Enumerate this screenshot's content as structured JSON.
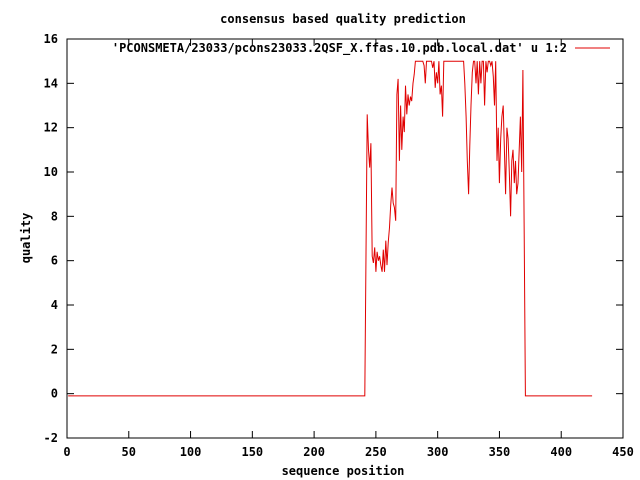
{
  "chart_data": {
    "type": "line",
    "title": "consensus based quality prediction",
    "xlabel": "sequence position",
    "ylabel": "quality",
    "xlim": [
      0,
      450
    ],
    "ylim": [
      -2,
      16
    ],
    "xticks": [
      "0",
      "50",
      "100",
      "150",
      "200",
      "250",
      "300",
      "350",
      "400",
      "450"
    ],
    "yticks": [
      "-2",
      "0",
      "2",
      "4",
      "6",
      "8",
      "10",
      "12",
      "14",
      "16"
    ],
    "grid": false,
    "legend_position": "top-right",
    "series": [
      {
        "name": "'PCONSMETA/23033/pcons23033.2QSF_X.ffas.10.pdb.local.dat' u 1:2",
        "color": "#e00000",
        "x": [
          1,
          100,
          200,
          240,
          241,
          242,
          243,
          244,
          245,
          246,
          247,
          248,
          249,
          250,
          251,
          252,
          253,
          254,
          255,
          256,
          257,
          258,
          259,
          260,
          261,
          262,
          263,
          264,
          265,
          266,
          267,
          268,
          269,
          270,
          271,
          272,
          273,
          274,
          275,
          276,
          277,
          278,
          279,
          280,
          281,
          282,
          283,
          284,
          285,
          286,
          287,
          288,
          289,
          290,
          291,
          292,
          293,
          294,
          295,
          296,
          297,
          298,
          299,
          300,
          301,
          302,
          303,
          304,
          305,
          306,
          307,
          308,
          309,
          310,
          311,
          312,
          313,
          314,
          315,
          316,
          317,
          318,
          319,
          320,
          321,
          322,
          323,
          324,
          325,
          326,
          327,
          328,
          329,
          330,
          331,
          332,
          333,
          334,
          335,
          336,
          337,
          338,
          339,
          340,
          341,
          342,
          343,
          344,
          345,
          346,
          347,
          348,
          349,
          350,
          351,
          352,
          353,
          354,
          355,
          356,
          357,
          358,
          359,
          360,
          361,
          362,
          363,
          364,
          365,
          366,
          367,
          368,
          369,
          370,
          371,
          372,
          380,
          400,
          425
        ],
        "y": [
          -0.1,
          -0.1,
          -0.1,
          -0.1,
          -0.1,
          6.3,
          12.6,
          11.0,
          10.2,
          11.3,
          6.2,
          5.9,
          6.6,
          5.5,
          6.4,
          6.0,
          6.2,
          5.8,
          5.5,
          6.5,
          5.5,
          6.9,
          5.8,
          6.8,
          7.5,
          8.5,
          9.3,
          8.6,
          8.4,
          7.8,
          13.5,
          14.2,
          10.5,
          13.0,
          11.0,
          12.5,
          11.8,
          13.9,
          12.6,
          13.5,
          13.0,
          13.4,
          13.2,
          14.0,
          14.4,
          15.0,
          15.0,
          15.0,
          15.0,
          15.0,
          15.0,
          15.0,
          14.8,
          14.0,
          15.0,
          15.0,
          15.0,
          15.0,
          15.0,
          14.7,
          15.0,
          13.8,
          14.5,
          14.0,
          15.0,
          13.5,
          13.9,
          12.5,
          15.0,
          15.0,
          15.0,
          15.0,
          15.0,
          15.0,
          15.0,
          15.0,
          15.0,
          15.0,
          15.0,
          15.0,
          15.0,
          15.0,
          15.0,
          15.0,
          15.0,
          14.0,
          12.5,
          10.5,
          9.0,
          11.2,
          13.0,
          14.5,
          15.0,
          15.0,
          14.0,
          15.0,
          13.5,
          15.0,
          14.0,
          15.0,
          15.0,
          13.0,
          15.0,
          14.5,
          15.0,
          15.0,
          14.8,
          15.0,
          14.3,
          13.0,
          15.0,
          10.5,
          12.0,
          9.5,
          11.5,
          12.5,
          13.0,
          11.0,
          9.0,
          12.0,
          11.5,
          10.0,
          8.0,
          10.5,
          11.0,
          9.5,
          10.5,
          9.0,
          9.5,
          11.0,
          12.5,
          10.0,
          14.6,
          7.2,
          -0.1,
          -0.1,
          -0.1,
          -0.1,
          -0.1
        ]
      }
    ]
  }
}
